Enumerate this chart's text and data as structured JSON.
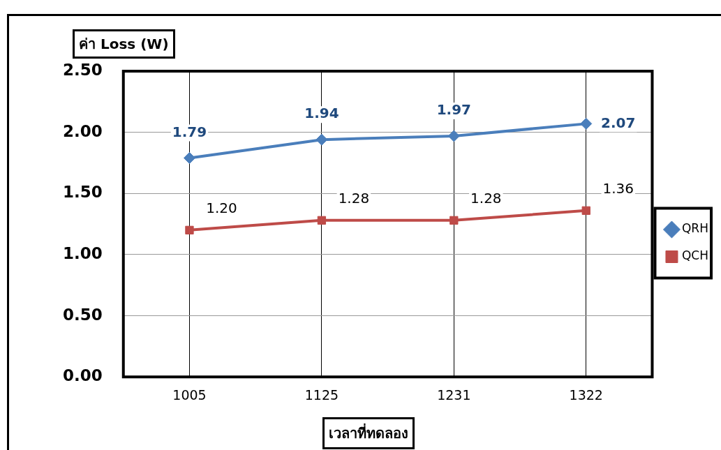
{
  "chart_data": {
    "type": "line",
    "ylabel": "ค่า Loss (W)",
    "xlabel": "เวลาที่ทดลอง",
    "categories": [
      "1005",
      "1125",
      "1231",
      "1322"
    ],
    "series": [
      {
        "name": "QRH",
        "color": "#4a7ebb",
        "marker": "diamond",
        "values": [
          1.79,
          1.94,
          1.97,
          2.07
        ],
        "value_labels": [
          "1.79",
          "1.94",
          "1.97",
          "2.07"
        ]
      },
      {
        "name": "QCH",
        "color": "#be4b48",
        "marker": "square",
        "values": [
          1.2,
          1.28,
          1.28,
          1.36
        ],
        "value_labels": [
          "1.20",
          "1.28",
          "1.28",
          "1.36"
        ]
      }
    ],
    "ylim": [
      0,
      2.5
    ],
    "yticks": [
      {
        "value": 0,
        "label": "0.00"
      },
      {
        "value": 0.5,
        "label": "0.50"
      },
      {
        "value": 1,
        "label": "1.00"
      },
      {
        "value": 1.5,
        "label": "1.50"
      },
      {
        "value": 2,
        "label": "2.00"
      },
      {
        "value": 2.5,
        "label": "2.50"
      }
    ],
    "grid": true,
    "legend": "right"
  }
}
